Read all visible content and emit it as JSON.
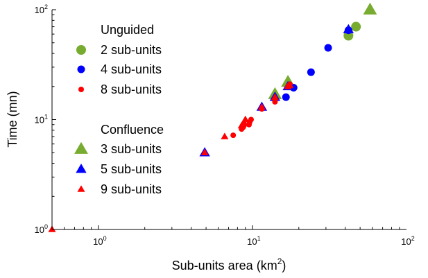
{
  "chart_data": {
    "type": "scatter",
    "xscale": "log",
    "yscale": "log",
    "xlim": [
      0.5,
      100
    ],
    "ylim": [
      1,
      100
    ],
    "xlabel": "Sub-units area (km",
    "xlabel_sup": "2",
    "xlabel_end": ")",
    "ylabel": "Time (mn)",
    "xticks": [
      {
        "base": "10",
        "exp": "0"
      },
      {
        "base": "10",
        "exp": "1"
      },
      {
        "base": "10",
        "exp": "2"
      }
    ],
    "yticks": [
      {
        "base": "10",
        "exp": "0"
      },
      {
        "base": "10",
        "exp": "1"
      },
      {
        "base": "10",
        "exp": "2"
      }
    ],
    "legend": {
      "placement": "upper-left",
      "groups": [
        {
          "title": "Unguided",
          "entries": [
            "2 sub-units",
            "4 sub-units",
            "8 sub-units"
          ]
        },
        {
          "title": "Confluence",
          "entries": [
            "3 sub-units",
            "5 sub-units",
            "9 sub-units"
          ]
        }
      ]
    },
    "series": [
      {
        "name": "2 sub-units",
        "group": "Unguided",
        "marker": "circle",
        "size": 7,
        "color": "#77ac30",
        "points": [
          [
            42,
            58
          ],
          [
            47,
            70
          ]
        ]
      },
      {
        "name": "4 sub-units",
        "group": "Unguided",
        "marker": "circle",
        "size": 5.5,
        "color": "#0000ff",
        "points": [
          [
            16.5,
            16
          ],
          [
            18.5,
            19.5
          ],
          [
            24,
            27
          ],
          [
            31,
            45
          ],
          [
            42,
            65
          ]
        ]
      },
      {
        "name": "8 sub-units",
        "group": "Unguided",
        "marker": "circle",
        "size": 4,
        "color": "#ff0000",
        "points": [
          [
            7.5,
            7.2
          ],
          [
            8.5,
            8.2
          ],
          [
            8.7,
            8.5
          ],
          [
            8.8,
            8.8
          ],
          [
            9.5,
            9.0
          ],
          [
            9.6,
            9.5
          ],
          [
            9.8,
            10
          ],
          [
            11.5,
            12.5
          ],
          [
            14,
            14.5
          ],
          [
            17,
            20
          ],
          [
            17.5,
            21
          ]
        ]
      },
      {
        "name": "3 sub-units",
        "group": "Confluence",
        "marker": "triangle",
        "size": 9,
        "color": "#77ac30",
        "points": [
          [
            14,
            17
          ],
          [
            17,
            22
          ],
          [
            58,
            100
          ]
        ]
      },
      {
        "name": "5 sub-units",
        "group": "Confluence",
        "marker": "triangle",
        "size": 7,
        "color": "#0000ff",
        "points": [
          [
            4.9,
            5
          ],
          [
            11.5,
            13
          ],
          [
            14,
            16
          ],
          [
            17,
            20
          ],
          [
            42,
            66
          ]
        ]
      },
      {
        "name": "9 sub-units",
        "group": "Confluence",
        "marker": "triangle",
        "size": 5,
        "color": "#ff0000",
        "points": [
          [
            0.5,
            1
          ],
          [
            4.9,
            5
          ],
          [
            6.6,
            7
          ],
          [
            8.5,
            8.8
          ],
          [
            8.8,
            9.5
          ],
          [
            9.0,
            10
          ],
          [
            11.5,
            13
          ],
          [
            14,
            16
          ],
          [
            17,
            20
          ],
          [
            17.5,
            20.5
          ]
        ]
      }
    ]
  }
}
